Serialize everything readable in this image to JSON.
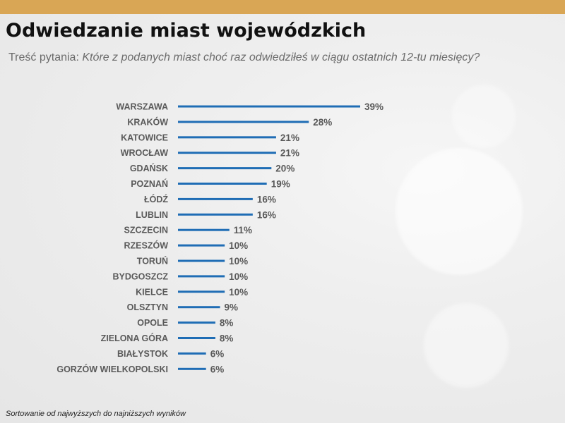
{
  "header": {
    "title": "Odwiedzanie miast wojewódzkich",
    "subtitle_prefix": "Treść pytania:",
    "subtitle_question": "Które z podanych miast choć raz odwiedziłeś w ciągu ostatnich 12-tu miesięcy?"
  },
  "footer": {
    "note": "Sortowanie od najwyższych do najniższych wyników"
  },
  "colors": {
    "bar": "#1f6db5",
    "label": "#595959",
    "accent_band": "#d9a655"
  },
  "chart_data": {
    "type": "bar",
    "orientation": "horizontal",
    "categories": [
      "WARSZAWA",
      "KRAKÓW",
      "KATOWICE",
      "WROCŁAW",
      "GDAŃSK",
      "POZNAŃ",
      "ŁÓDŹ",
      "LUBLIN",
      "SZCZECIN",
      "RZESZÓW",
      "TORUŃ",
      "BYDGOSZCZ",
      "KIELCE",
      "OLSZTYN",
      "OPOLE",
      "ZIELONA GÓRA",
      "BIAŁYSTOK",
      "GORZÓW WIELKOPOLSKI"
    ],
    "values": [
      39,
      28,
      21,
      21,
      20,
      19,
      16,
      16,
      11,
      10,
      10,
      10,
      10,
      9,
      8,
      8,
      6,
      6
    ],
    "value_labels": [
      "39%",
      "28%",
      "21%",
      "21%",
      "20%",
      "19%",
      "16%",
      "16%",
      "11%",
      "10%",
      "10%",
      "10%",
      "10%",
      "9%",
      "8%",
      "8%",
      "6%",
      "6%"
    ],
    "unit": "%",
    "xlim": [
      0,
      39
    ],
    "grid": false,
    "legend": "none"
  }
}
